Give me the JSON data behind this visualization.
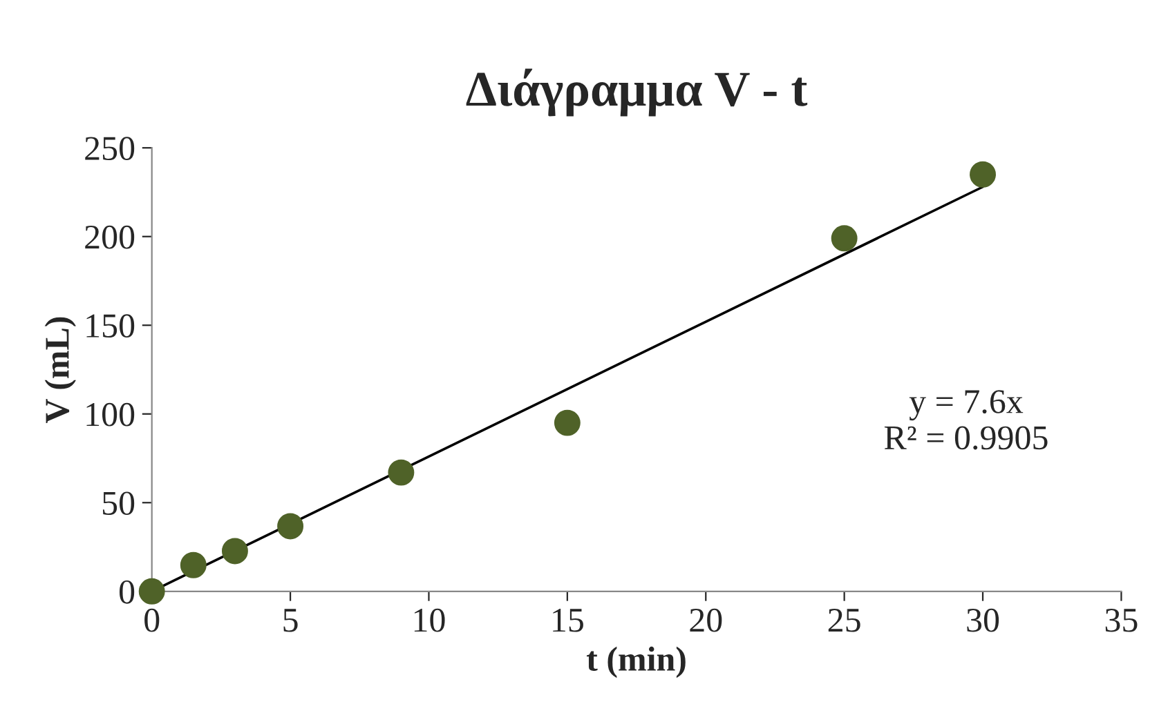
{
  "chart_data": {
    "type": "scatter",
    "title": "Διάγραμμα V - t",
    "xlabel": "t (min)",
    "ylabel": "V (mL)",
    "series": [
      {
        "color": "#4f6228",
        "marker": "circle",
        "x": [
          0,
          1.5,
          3,
          5,
          9,
          15,
          25,
          30
        ],
        "values": [
          0,
          14.8,
          22.7,
          36.7,
          67,
          95,
          199,
          235
        ]
      },
      {
        "type": "line",
        "color": "#000000",
        "x": [
          0,
          30
        ],
        "values": [
          0,
          228
        ]
      }
    ],
    "annotations": [
      "y = 7.6x\nR² = 0.9905"
    ],
    "xlim": [
      0,
      35
    ],
    "xticks": [
      0,
      5,
      10,
      15,
      20,
      25,
      30,
      35
    ],
    "ylim": [
      0,
      250
    ],
    "yticks": [
      0,
      50,
      100,
      150,
      200,
      250
    ],
    "grid": false,
    "legend": false
  }
}
